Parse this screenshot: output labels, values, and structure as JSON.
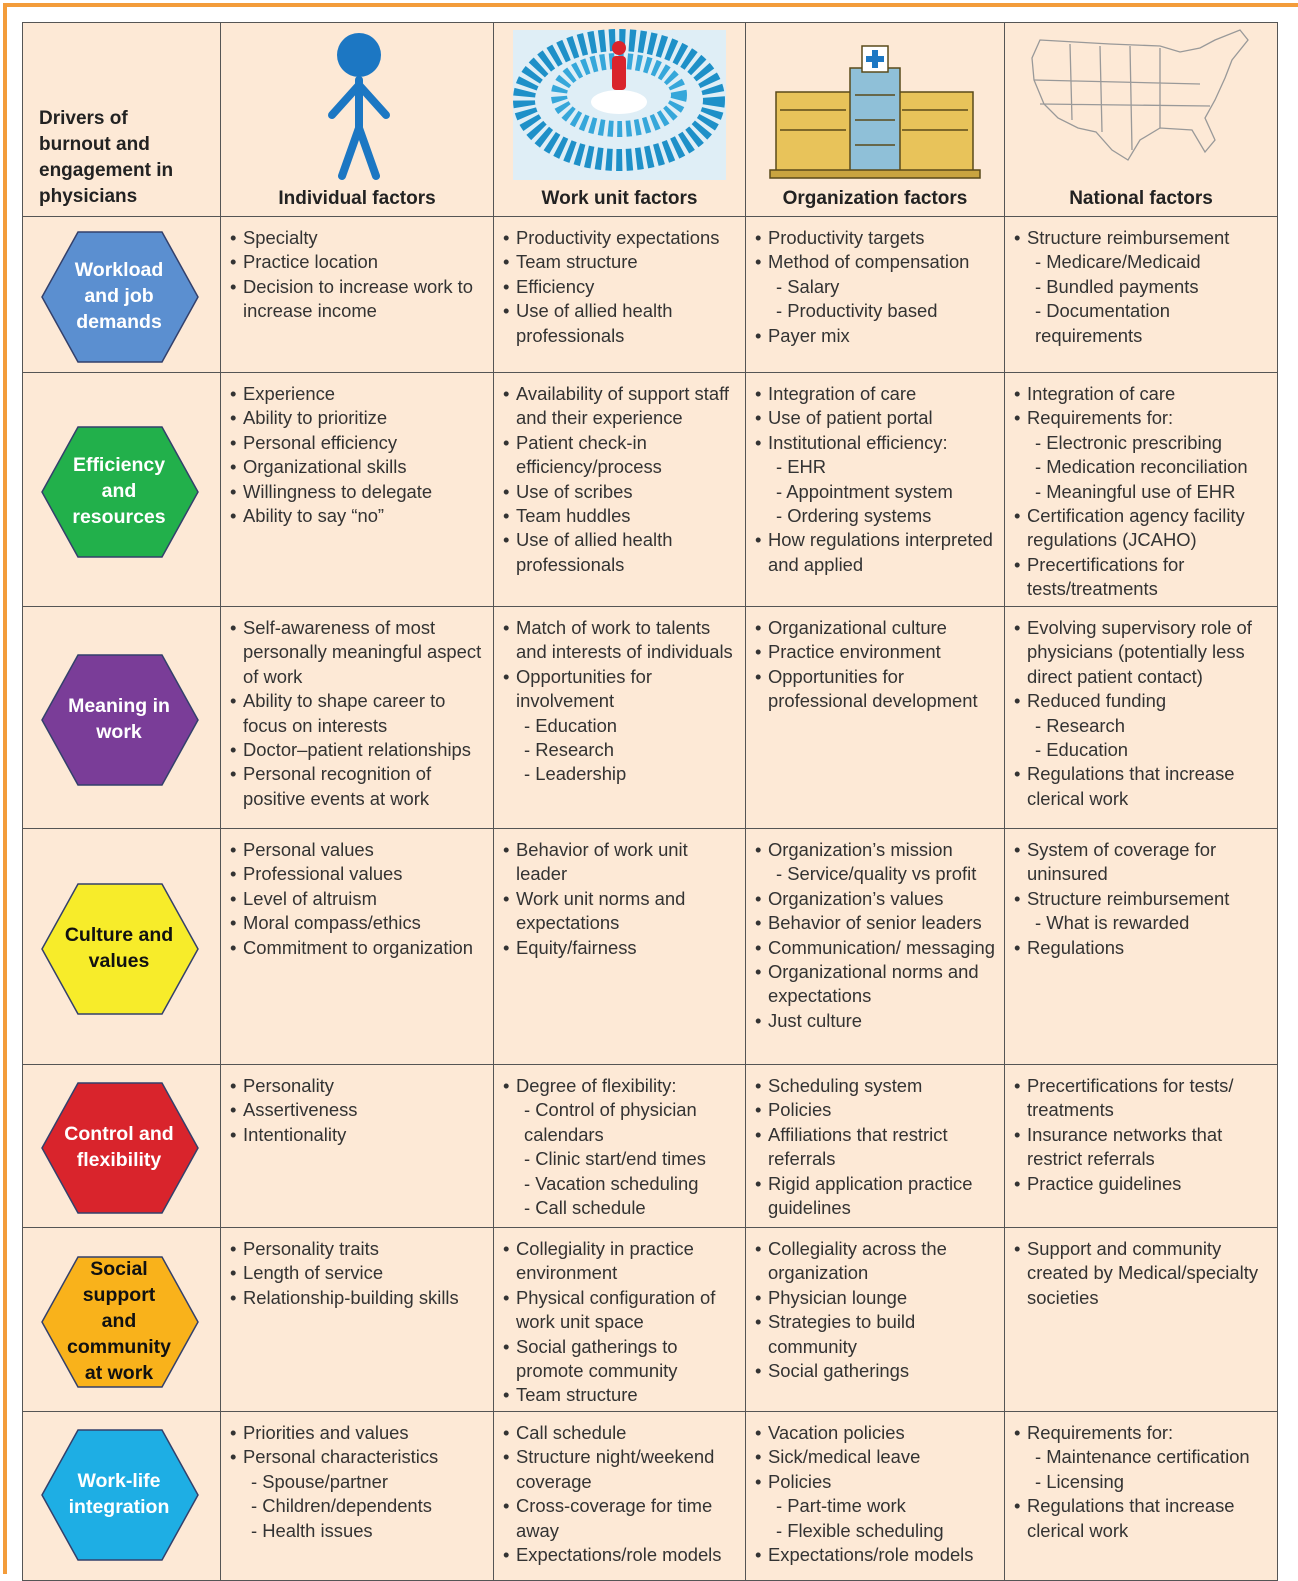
{
  "header": {
    "corner": "Drivers of burnout and engagement in physicians",
    "columns": [
      "Individual factors",
      "Work unit factors",
      "Organization factors",
      "National factors"
    ]
  },
  "rows": [
    {
      "driver": "Workload and job demands",
      "color": "#5b8fd0",
      "text_color": "#ffffff",
      "cells": [
        [
          "Specialty",
          "Practice location",
          "Decision to increase work to increase income"
        ],
        [
          "Productivity expectations",
          "Team structure",
          "Efficiency",
          "Use of allied health professionals"
        ],
        [
          "Productivity targets",
          "Method of compensation",
          "- Salary",
          "- Productivity based",
          "Payer mix"
        ],
        [
          "Structure reimbursement",
          "- Medicare/Medicaid",
          "- Bundled payments",
          "- Documentation requirements"
        ]
      ]
    },
    {
      "driver": "Efficiency and resources",
      "color": "#22b04b",
      "text_color": "#ffffff",
      "cells": [
        [
          "Experience",
          "Ability to prioritize",
          "Personal efficiency",
          "Organizational skills",
          "Willingness to delegate",
          "Ability to say “no”"
        ],
        [
          "Availability of support staff and their experience",
          "Patient check-in efficiency/process",
          "Use of scribes",
          "Team huddles",
          "Use of allied health professionals"
        ],
        [
          "Integration of care",
          "Use of patient portal",
          "Institutional efficiency:",
          "- EHR",
          "- Appointment system",
          "- Ordering systems",
          "How regulations interpreted and applied"
        ],
        [
          "Integration of care",
          "Requirements for:",
          "- Electronic prescribing",
          "- Medication reconciliation",
          "- Meaningful use of EHR",
          "Certification agency facility regulations (JCAHO)",
          "Precertifications for tests/treatments"
        ]
      ]
    },
    {
      "driver": "Meaning in work",
      "color": "#7a3d98",
      "text_color": "#ffffff",
      "cells": [
        [
          "Self-awareness of most personally meaningful aspect of work",
          "Ability to shape career to focus on interests",
          "Doctor–patient relationships",
          "Personal recognition of positive events at work"
        ],
        [
          "Match of work to talents and interests of individuals",
          "Opportunities for involvement",
          "- Education",
          "- Research",
          "- Leadership"
        ],
        [
          "Organizational culture",
          "Practice environment",
          "Opportunities for professional development"
        ],
        [
          "Evolving supervisory role of physicians (potentially less direct patient contact)",
          "Reduced funding",
          "- Research",
          "- Education",
          "Regulations that increase clerical work"
        ]
      ]
    },
    {
      "driver": "Culture and values",
      "color": "#f7ec2a",
      "text_color": "#111111",
      "cells": [
        [
          "Personal values",
          "Professional values",
          "Level of altruism",
          "Moral compass/ethics",
          "Commitment to organization"
        ],
        [
          "Behavior of work unit leader",
          "Work unit norms and expectations",
          "Equity/fairness"
        ],
        [
          "Organization’s mission",
          "- Service/quality vs profit",
          "Organization’s values",
          "Behavior of senior leaders",
          "Communication/ messaging",
          "Organizational norms and expectations",
          "Just culture"
        ],
        [
          "System of coverage for uninsured",
          "Structure reimbursement",
          "- What is rewarded",
          "Regulations"
        ]
      ]
    },
    {
      "driver": "Control and flexibility",
      "color": "#d9242c",
      "text_color": "#ffffff",
      "cells": [
        [
          "Personality",
          "Assertiveness",
          "Intentionality"
        ],
        [
          "Degree of flexibility:",
          "- Control of physician calendars",
          "- Clinic start/end times",
          "- Vacation scheduling",
          "- Call schedule"
        ],
        [
          "Scheduling system",
          "Policies",
          "Affiliations that restrict referrals",
          "Rigid application practice guidelines"
        ],
        [
          "Precertifications for tests/ treatments",
          "Insurance networks that restrict referrals",
          "Practice guidelines"
        ]
      ]
    },
    {
      "driver": "Social support and community at work",
      "color": "#f9b21b",
      "text_color": "#111111",
      "cells": [
        [
          "Personality traits",
          "Length of service",
          "Relationship-building skills"
        ],
        [
          "Collegiality in practice environment",
          "Physical configuration of work unit space",
          "Social gatherings to promote community",
          "Team structure"
        ],
        [
          "Collegiality across the organization",
          "Physician lounge",
          "Strategies to build community",
          "Social gatherings"
        ],
        [
          "Support and community created by Medical/specialty societies"
        ]
      ]
    },
    {
      "driver": "Work-life integration",
      "color": "#1eaee4",
      "text_color": "#ffffff",
      "cells": [
        [
          "Priorities and values",
          "Personal characteristics",
          "- Spouse/partner",
          "- Children/dependents",
          "- Health issues"
        ],
        [
          "Call schedule",
          "Structure night/weekend coverage",
          "Cross-coverage for time away",
          "Expectations/role models"
        ],
        [
          "Vacation policies",
          "Sick/medical leave",
          "Policies",
          "- Part-time work",
          "- Flexible scheduling",
          "Expectations/role models"
        ],
        [
          "Requirements for:",
          "- Maintenance certification",
          "- Licensing",
          "Regulations that increase clerical work"
        ]
      ]
    }
  ]
}
